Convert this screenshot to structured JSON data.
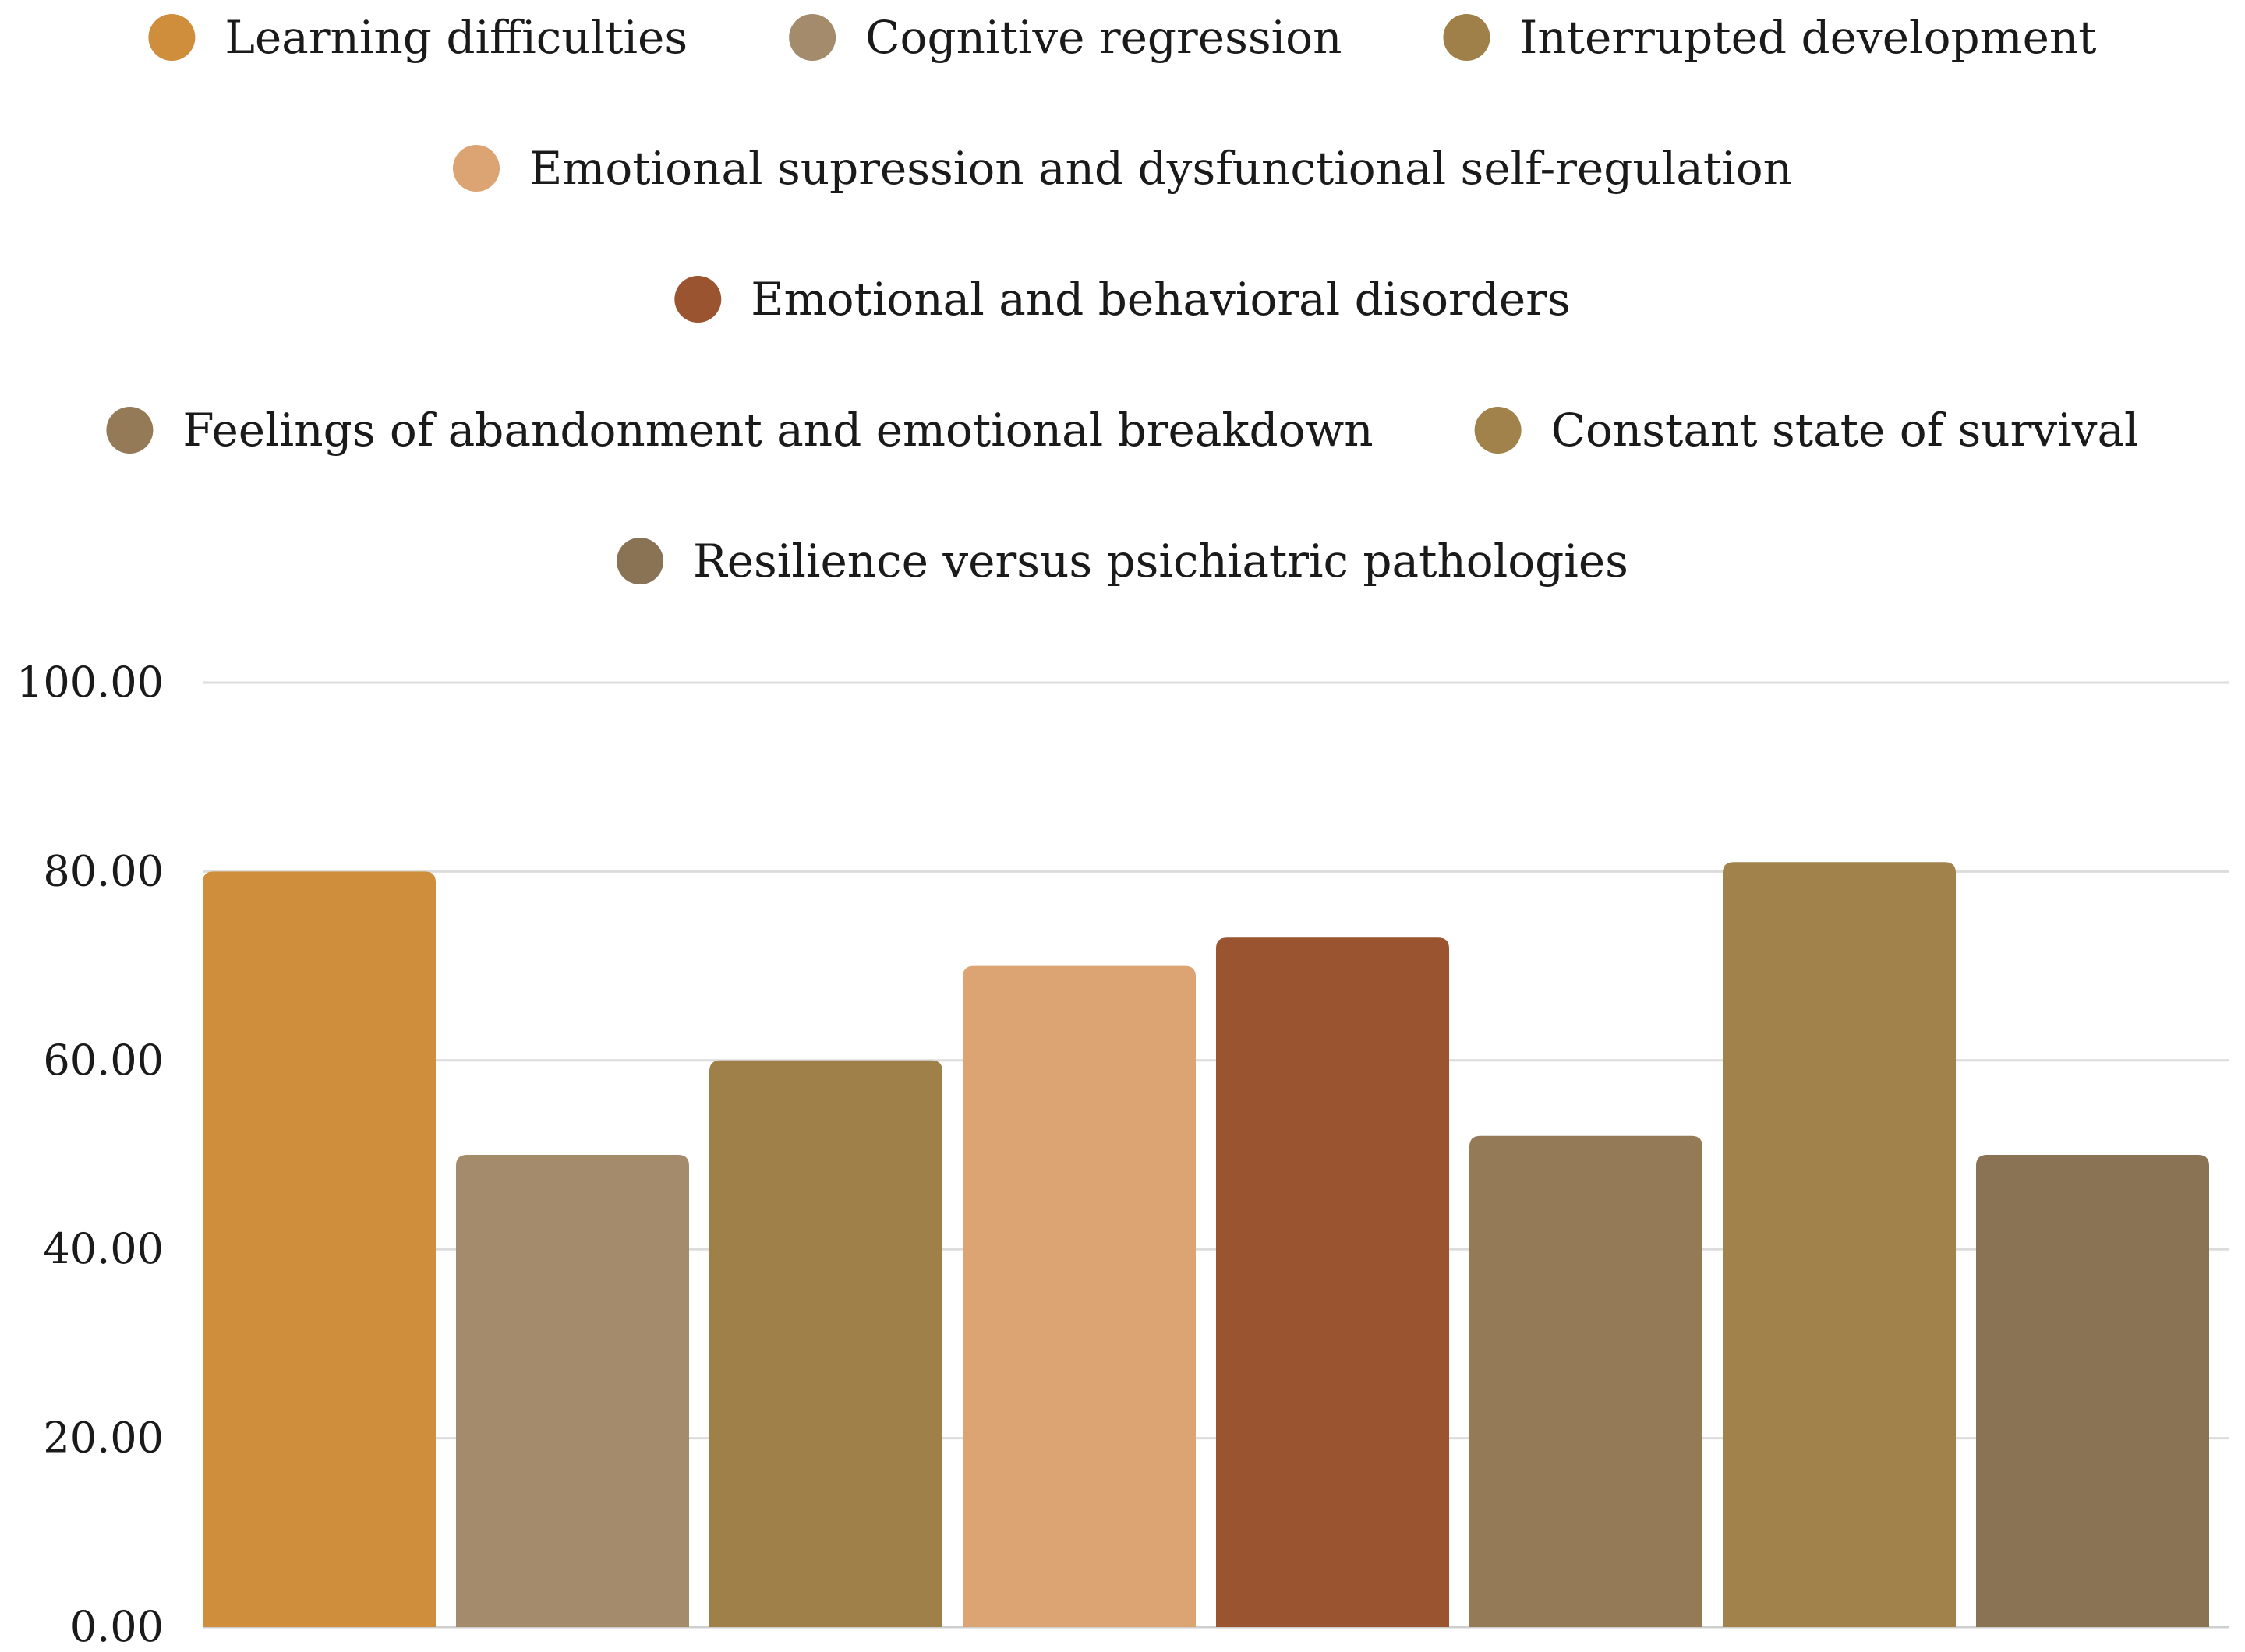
{
  "chart_data": {
    "type": "bar",
    "title": "",
    "xlabel": "",
    "ylabel": "",
    "ylim": [
      0,
      100
    ],
    "yticks": [
      "0.00",
      "20.00",
      "40.00",
      "60.00",
      "80.00",
      "100.00"
    ],
    "legend_position": "top",
    "series": [
      {
        "name": "Learning difficulties",
        "value": 80,
        "color": "#ce8e3c"
      },
      {
        "name": "Cognitive regression",
        "value": 50,
        "color": "#a38b6c"
      },
      {
        "name": "Interrupted development",
        "value": 60,
        "color": "#9e8048"
      },
      {
        "name": "Emotional supression and dysfunctional self-regulation",
        "value": 70,
        "color": "#dca472"
      },
      {
        "name": "Emotional and behavioral disorders",
        "value": 73,
        "color": "#9a5430"
      },
      {
        "name": "Feelings of abandonment and emotional breakdown",
        "value": 52,
        "color": "#957a57"
      },
      {
        "name": "Constant state of survival",
        "value": 81,
        "color": "#a0824a"
      },
      {
        "name": "Resilience versus psichiatric pathologies",
        "value": 50,
        "color": "#8a7255"
      }
    ]
  }
}
